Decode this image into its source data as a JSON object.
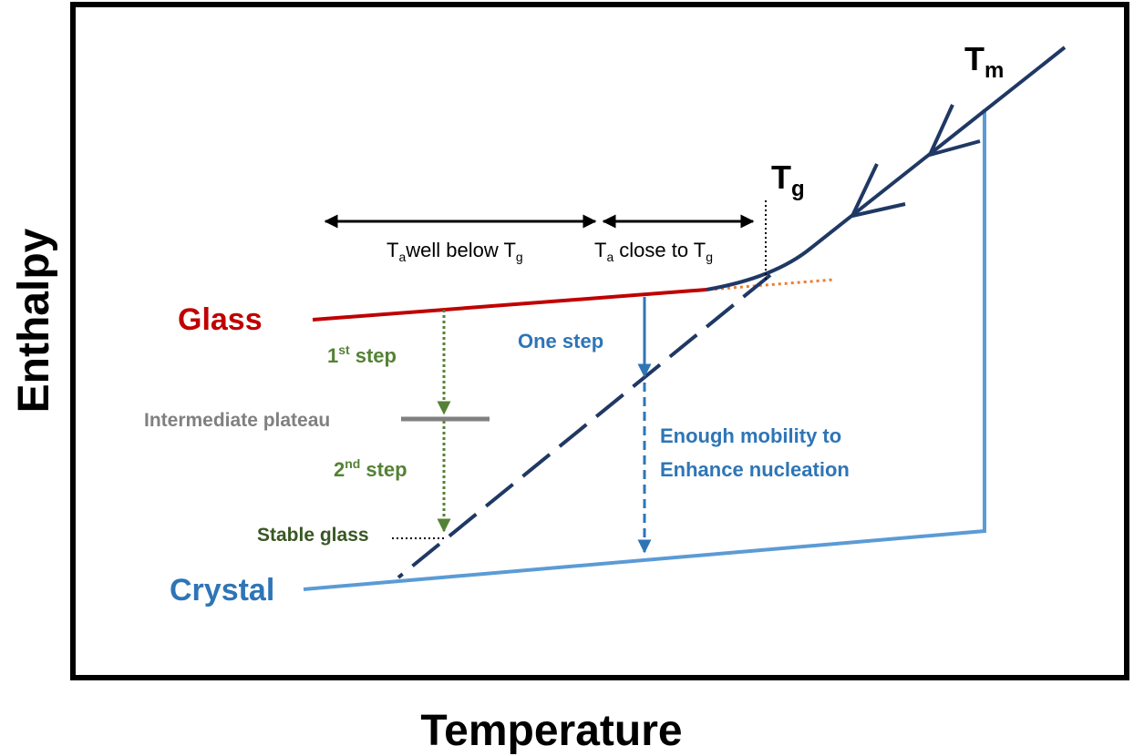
{
  "axes": {
    "x_label": "Temperature",
    "y_label": "Enthalpy"
  },
  "labels": {
    "tm": {
      "base": "T",
      "sub": "m"
    },
    "tg": {
      "base": "T",
      "sub": "g"
    },
    "well_below": {
      "t1": "T",
      "s1": "a",
      "t2": "well below T",
      "s2": "g"
    },
    "close_to": {
      "t1": "T",
      "s1": "a",
      "t2": "close to T",
      "s2": "g"
    },
    "glass": "Glass",
    "crystal": "Crystal",
    "one_step": "One step",
    "first_step": {
      "num": "1",
      "sup": "st",
      "text": "step"
    },
    "second_step": {
      "num": "2",
      "sup": "nd",
      "text": "step"
    },
    "intermediate": "Intermediate plateau",
    "stable": "Stable glass",
    "mobility": [
      "Enough mobility to",
      "Enhance nucleation"
    ]
  }
}
